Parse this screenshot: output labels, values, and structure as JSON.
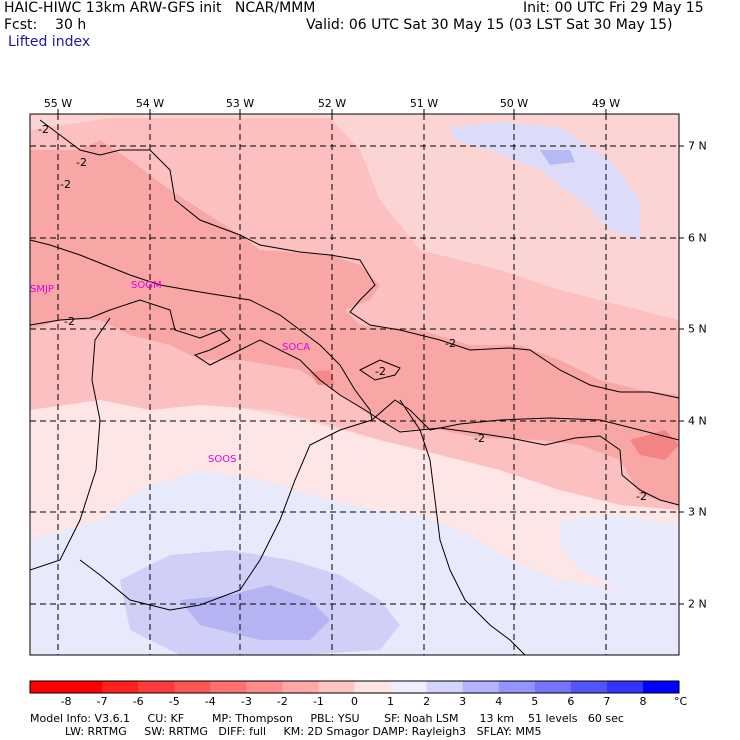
{
  "header": {
    "line1_left": "HAIC-HIWC 13km ARW-GFS init   NCAR/MMM",
    "line2_left": "Fcst:    30 h",
    "line3_left": "Lifted index",
    "line1_right": "Init: 00 UTC Fri 29 May 15",
    "line2_right": "Valid: 06 UTC Sat 30 May 15 (03 LST Sat 30 May 15)"
  },
  "map": {
    "lon_labels": [
      "55 W",
      "54 W",
      "53 W",
      "52 W",
      "51 W",
      "50 W",
      "49 W"
    ],
    "lat_labels": [
      "7 N",
      "6 N",
      "5 N",
      "4 N",
      "3 N",
      "2 N"
    ],
    "stations": [
      "SMJP",
      "SOGM",
      "SOCA",
      "SOOS"
    ],
    "contour_label": "-2"
  },
  "colorbar": {
    "labels": [
      "-8",
      "-7",
      "-6",
      "-5",
      "-4",
      "-3",
      "-2",
      "-1",
      "0",
      "1",
      "2",
      "3",
      "4",
      "5",
      "6",
      "7",
      "8"
    ],
    "unit": "°C",
    "colors": [
      "#ff0000",
      "#ff2020",
      "#ff3a3a",
      "#ff5555",
      "#ff7070",
      "#ff8c8c",
      "#ffa8a8",
      "#ffc4c4",
      "#ffe4e4",
      "#eeeeff",
      "#d4d4ff",
      "#b4b4ff",
      "#9494ff",
      "#7474ff",
      "#5454ff",
      "#3434ff",
      "#0000ff"
    ]
  },
  "footer": {
    "line1": "Model Info: V3.6.1     CU: KF        MP: Thompson     PBL: YSU       SF: Noah LSM      13 km    51 levels   60 sec",
    "line2": "          LW: RRTMG     SW: RRTMG   DIFF: full     KM: 2D Smagor DAMP: Rayleigh3   SFLAY: MM5"
  },
  "fill_colors": {
    "bg": "#ffe6e6",
    "light_red": "#fcc8c8",
    "mid_red": "#f8a6a6",
    "strong_red": "#f48a8a",
    "light_blue": "#e8e8fc",
    "mid_blue": "#cfcff8",
    "deep_blue": "#b2b2f2"
  }
}
